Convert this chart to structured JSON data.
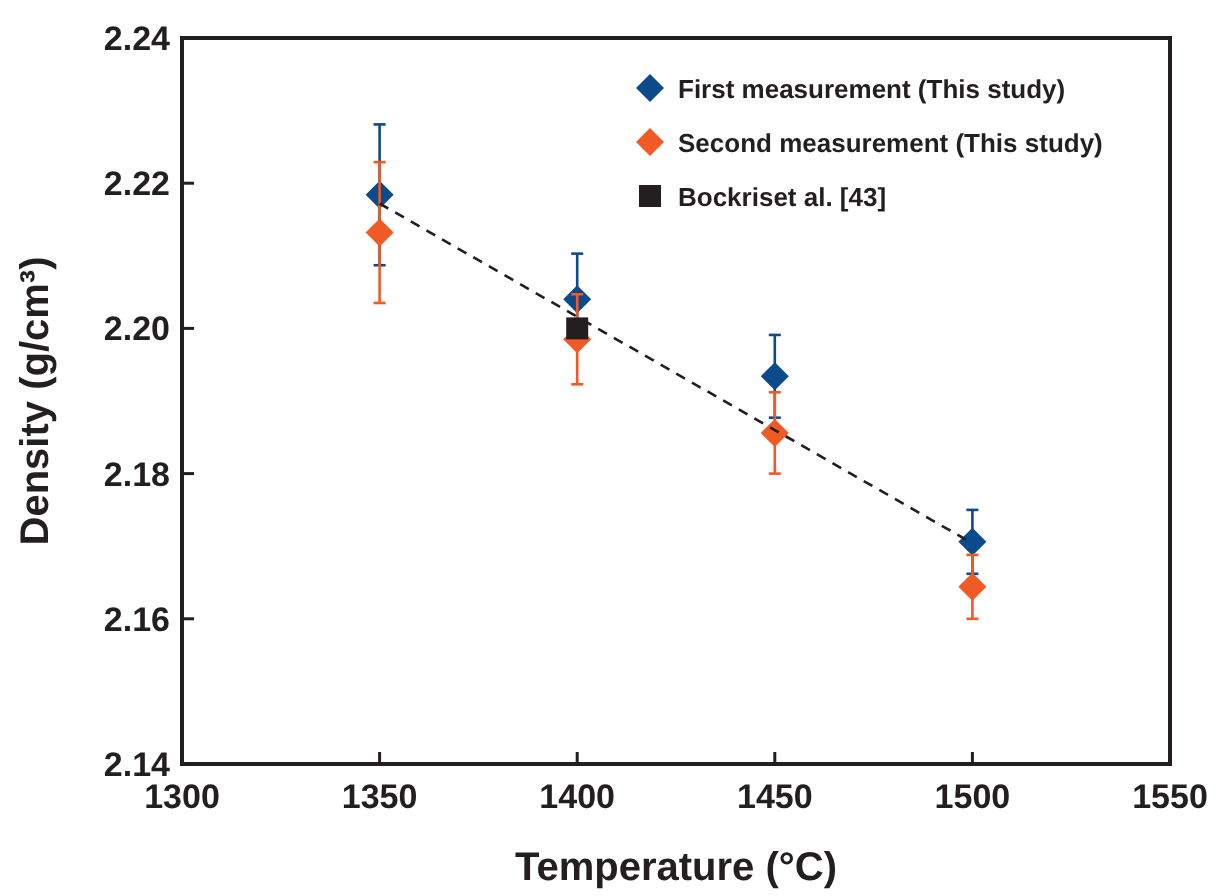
{
  "chart_data": {
    "type": "scatter",
    "xlabel": "Temperature (°C)",
    "ylabel": "Density (g/cm³)",
    "xlim": [
      1300,
      1550
    ],
    "xticks": [
      1300,
      1350,
      1400,
      1450,
      1500,
      1550
    ],
    "ylim": [
      2.14,
      2.24
    ],
    "yticks": [
      {
        "value": 2.14,
        "label": "2.14"
      },
      {
        "value": 2.16,
        "label": "2.16"
      },
      {
        "value": 2.18,
        "label": "2.18"
      },
      {
        "value": 2.2,
        "label": "2.20"
      },
      {
        "value": 2.22,
        "label": "2.22"
      },
      {
        "value": 2.24,
        "label": "2.24"
      }
    ],
    "grid": false,
    "legend": "top right",
    "marker": "diamond",
    "series": [
      {
        "name": "First measurement (This study)",
        "color": "#0b4a8b",
        "x": [
          1350,
          1400,
          1450,
          1500
        ],
        "values": [
          2.2184,
          2.204,
          2.1934,
          2.1706
        ],
        "errors": [
          0.0097,
          0.0063,
          0.0057,
          0.0044
        ]
      },
      {
        "name": "Second measurement (This study)",
        "color": "#f15a24",
        "x": [
          1350,
          1400,
          1450,
          1500
        ],
        "values": [
          2.2132,
          2.1985,
          2.1856,
          2.1644
        ],
        "errors": [
          0.0097,
          0.0062,
          0.0056,
          0.0044
        ]
      },
      {
        "name": "Bockriset al. [43]",
        "color": "#231f20",
        "marker": "square",
        "x": [
          1400
        ],
        "values": [
          2.2
        ]
      },
      {
        "type": "line",
        "color": "#231f20",
        "line_style": "dashed",
        "marker": "none",
        "x": [
          1350,
          1500
        ],
        "values": [
          2.2172,
          2.1704
        ]
      }
    ]
  }
}
